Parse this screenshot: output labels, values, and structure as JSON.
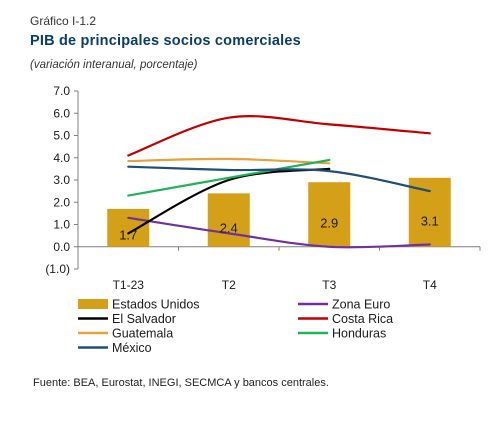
{
  "figure": {
    "label": "Gráfico I-1.2",
    "title": "PIB de principales socios comerciales",
    "subtitle": "(variación interanual, porcentaje)",
    "source": "Fuente: BEA, Eurostat, INEGI, SECMCA y bancos centrales."
  },
  "chart_data": {
    "type": "bar",
    "categories": [
      "T1-23",
      "T2",
      "T3",
      "T4"
    ],
    "ylim": [
      -1.0,
      7.0
    ],
    "yticks": [
      "7.0",
      "6.0",
      "5.0",
      "4.0",
      "3.0",
      "2.0",
      "1.0",
      "0.0",
      "(1.0)"
    ],
    "ytick_values": [
      7,
      6,
      5,
      4,
      3,
      2,
      1,
      0,
      -1
    ],
    "grid": false,
    "legend_position": "bottom",
    "bar_series": {
      "name": "Estados Unidos",
      "color": "#d4a017",
      "values": [
        1.7,
        2.4,
        2.9,
        3.1
      ],
      "labels": [
        "1.7",
        "2.4",
        "2.9",
        "3.1"
      ]
    },
    "line_series": [
      {
        "name": "Zona Euro",
        "color": "#7030a0",
        "values": [
          1.3,
          0.6,
          0.0,
          0.1
        ]
      },
      {
        "name": "El Salvador",
        "color": "#000000",
        "values": [
          0.6,
          3.0,
          3.5,
          null
        ]
      },
      {
        "name": "Costa Rica",
        "color": "#c00000",
        "values": [
          4.1,
          5.8,
          5.5,
          5.1
        ]
      },
      {
        "name": "Guatemala",
        "color": "#e6a23c",
        "values": [
          3.85,
          3.95,
          3.75,
          null
        ]
      },
      {
        "name": "Honduras",
        "color": "#20b35a",
        "values": [
          2.3,
          3.1,
          3.9,
          null
        ]
      },
      {
        "name": "México",
        "color": "#1f4e79",
        "values": [
          3.6,
          3.45,
          3.4,
          2.5
        ]
      }
    ]
  }
}
